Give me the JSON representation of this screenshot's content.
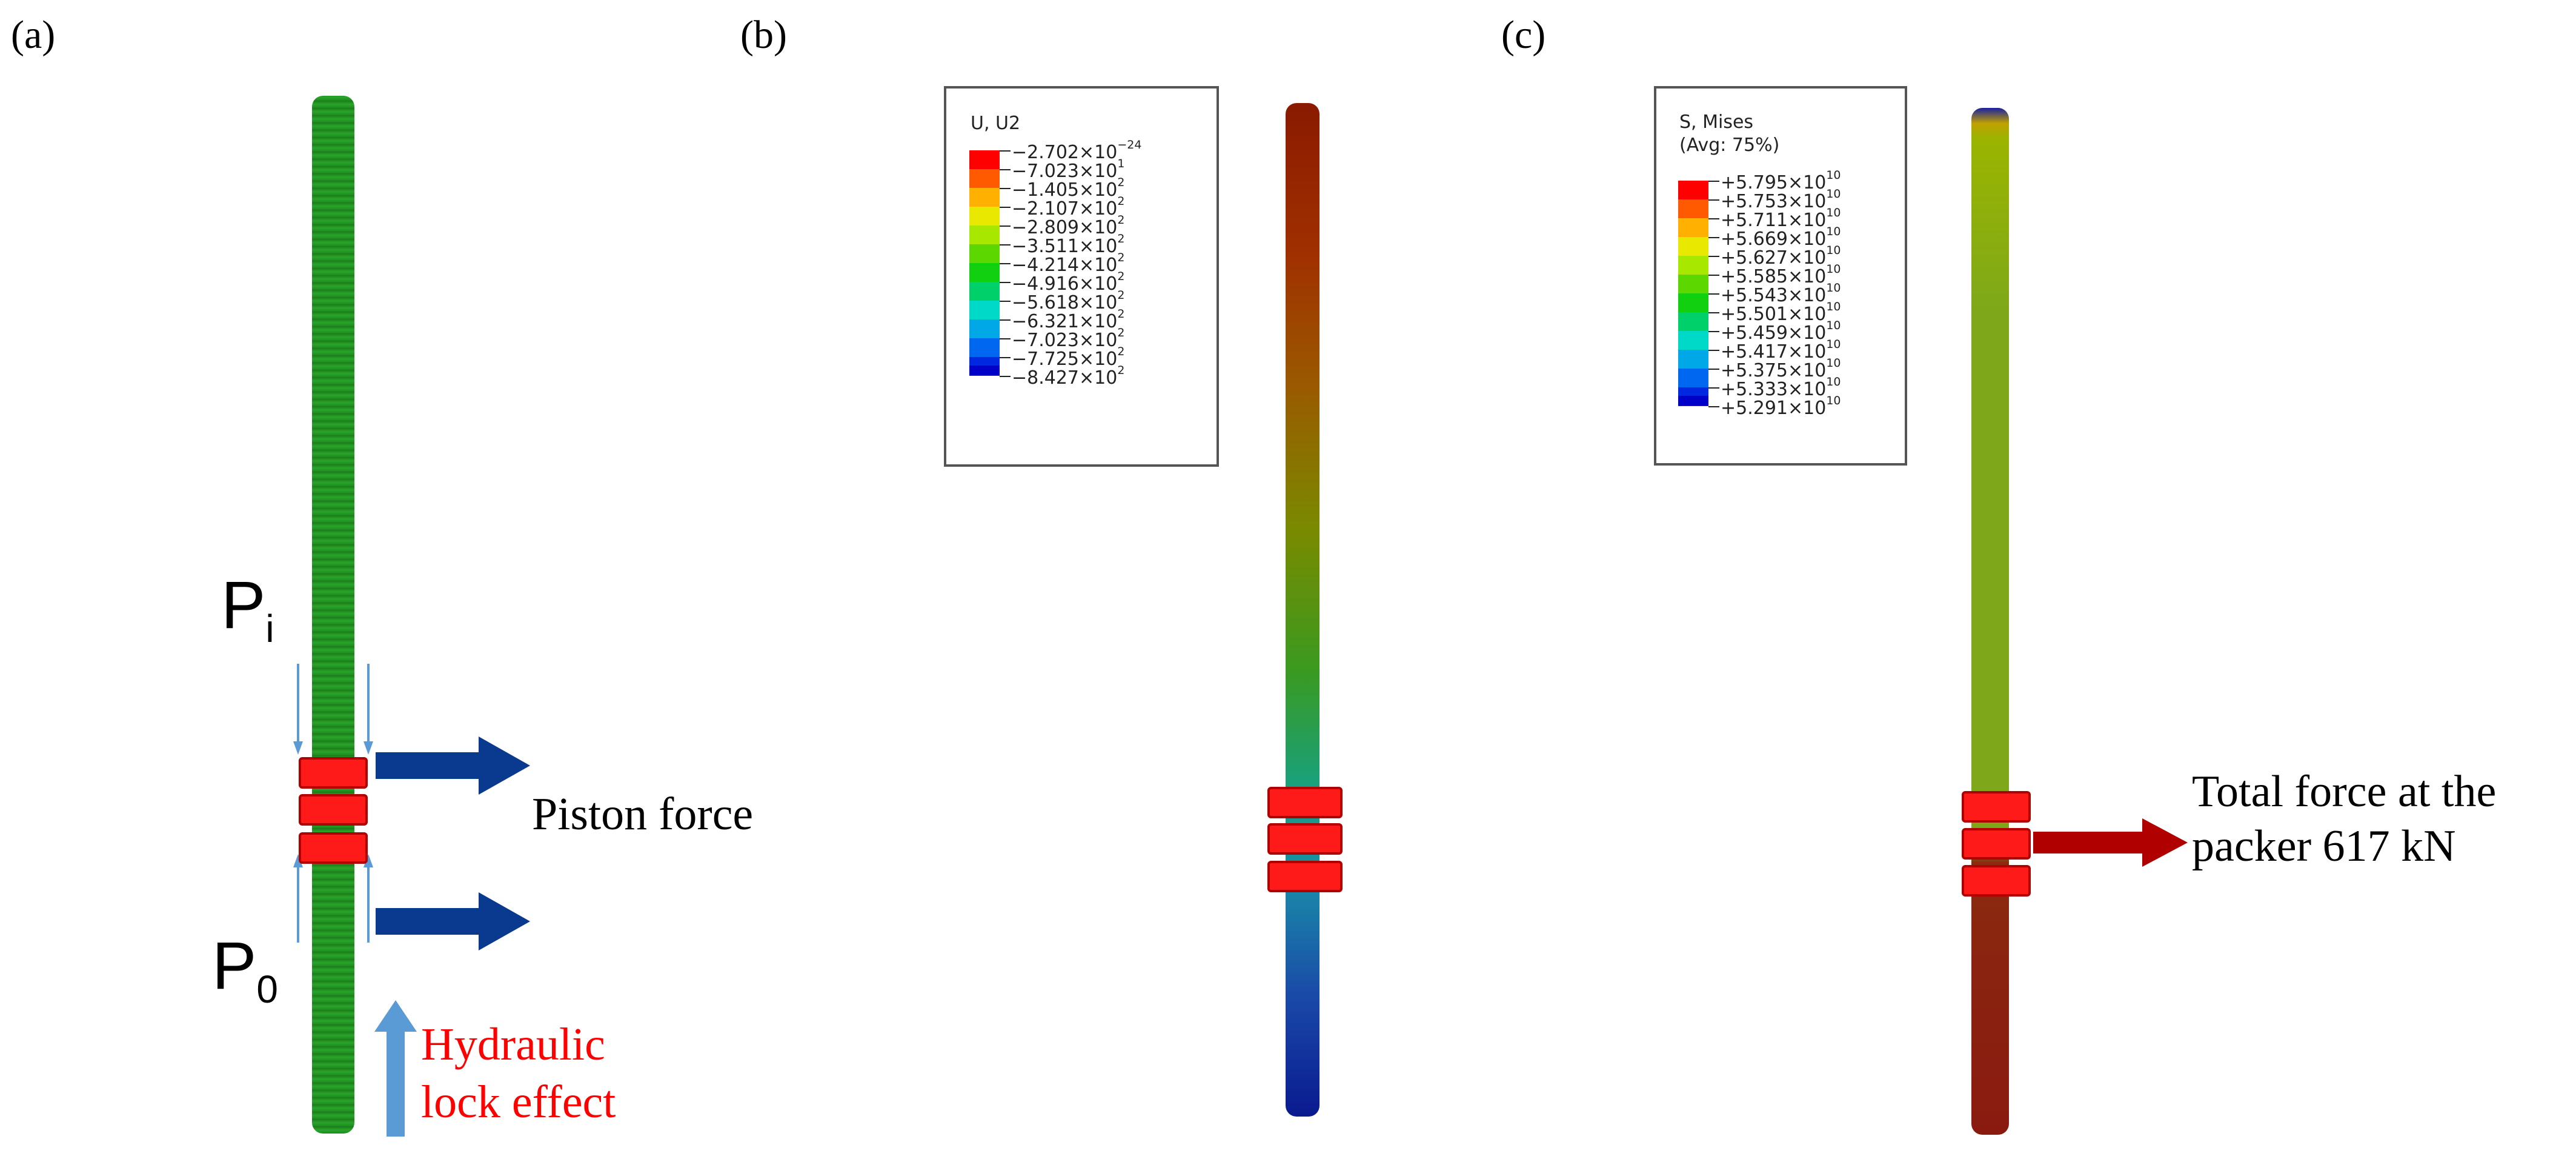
{
  "panels": {
    "a": {
      "label": "(a)",
      "pressure_inner": {
        "symbol": "P",
        "subscript": "i"
      },
      "pressure_outer": {
        "symbol": "P",
        "subscript": "0"
      },
      "piston_force": "Piston force",
      "hydraulic_line1": "Hydraulic",
      "hydraulic_line2": "lock effect"
    },
    "b": {
      "label": "(b)",
      "legend_title": "U, U2",
      "legend_values": [
        {
          "m": "−2.702",
          "e": "−24"
        },
        {
          "m": "−7.023",
          "e": "1"
        },
        {
          "m": "−1.405",
          "e": "2"
        },
        {
          "m": "−2.107",
          "e": "2"
        },
        {
          "m": "−2.809",
          "e": "2"
        },
        {
          "m": "−3.511",
          "e": "2"
        },
        {
          "m": "−4.214",
          "e": "2"
        },
        {
          "m": "−4.916",
          "e": "2"
        },
        {
          "m": "−5.618",
          "e": "2"
        },
        {
          "m": "−6.321",
          "e": "2"
        },
        {
          "m": "−7.023",
          "e": "2"
        },
        {
          "m": "−7.725",
          "e": "2"
        },
        {
          "m": "−8.427",
          "e": "2"
        }
      ]
    },
    "c": {
      "label": "(c)",
      "legend_title_line1": "S, Mises",
      "legend_title_line2": "(Avg: 75%)",
      "legend_values": [
        {
          "m": "+5.795",
          "e": "10"
        },
        {
          "m": "+5.753",
          "e": "10"
        },
        {
          "m": "+5.711",
          "e": "10"
        },
        {
          "m": "+5.669",
          "e": "10"
        },
        {
          "m": "+5.627",
          "e": "10"
        },
        {
          "m": "+5.585",
          "e": "10"
        },
        {
          "m": "+5.543",
          "e": "10"
        },
        {
          "m": "+5.501",
          "e": "10"
        },
        {
          "m": "+5.459",
          "e": "10"
        },
        {
          "m": "+5.417",
          "e": "10"
        },
        {
          "m": "+5.375",
          "e": "10"
        },
        {
          "m": "+5.333",
          "e": "10"
        },
        {
          "m": "+5.291",
          "e": "10"
        }
      ],
      "total_force_line1": "Total force at the",
      "total_force_line2": "packer 617 kN"
    }
  },
  "colors": {
    "contour_scale": [
      "#ff0000",
      "#ff5a00",
      "#ffb000",
      "#e8e800",
      "#a8e800",
      "#5cd800",
      "#10d010",
      "#00d06a",
      "#00d8c8",
      "#00a8e8",
      "#0068f0",
      "#0028e0",
      "#0000c8"
    ],
    "packer": "#ff1a1a",
    "arrow_blue": "#0a3a8f",
    "arrow_light_blue": "#5b9bd5",
    "arrow_red": "#b00000",
    "label_red": "#ff0000"
  }
}
